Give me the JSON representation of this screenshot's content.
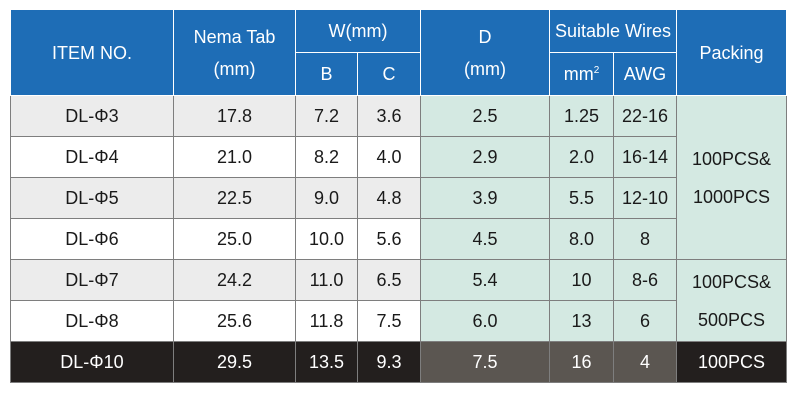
{
  "table": {
    "headers": {
      "item": "ITEM NO.",
      "nema_tab": [
        "Nema Tab",
        "(mm)"
      ],
      "w": "W(mm)",
      "b": "B",
      "c": "C",
      "d": [
        "D",
        "(mm)"
      ],
      "suitable_wires": "Suitable Wires",
      "mm2": "mm",
      "mm2_sup": "2",
      "awg": "AWG",
      "packing": "Packing"
    },
    "rows": [
      {
        "item": "DL-Φ3",
        "nema": "17.8",
        "b": "7.2",
        "c": "3.6",
        "d": "2.5",
        "mm2": "1.25",
        "awg": "22-16"
      },
      {
        "item": "DL-Φ4",
        "nema": "21.0",
        "b": "8.2",
        "c": "4.0",
        "d": "2.9",
        "mm2": "2.0",
        "awg": "16-14"
      },
      {
        "item": "DL-Φ5",
        "nema": "22.5",
        "b": "9.0",
        "c": "4.8",
        "d": "3.9",
        "mm2": "5.5",
        "awg": "12-10"
      },
      {
        "item": "DL-Φ6",
        "nema": "25.0",
        "b": "10.0",
        "c": "5.6",
        "d": "4.5",
        "mm2": "8.0",
        "awg": "8"
      },
      {
        "item": "DL-Φ7",
        "nema": "24.2",
        "b": "11.0",
        "c": "6.5",
        "d": "5.4",
        "mm2": "10",
        "awg": "8-6"
      },
      {
        "item": "DL-Φ8",
        "nema": "25.6",
        "b": "11.8",
        "c": "7.5",
        "d": "6.0",
        "mm2": "13",
        "awg": "6"
      },
      {
        "item": "DL-Φ10",
        "nema": "29.5",
        "b": "13.5",
        "c": "9.3",
        "d": "7.5",
        "mm2": "16",
        "awg": "4"
      }
    ],
    "packing": {
      "group1": [
        "100PCS&",
        "1000PCS"
      ],
      "group2": [
        "100PCS&",
        "500PCS"
      ],
      "group3": "100PCS"
    }
  },
  "colors": {
    "header": "#1e6db6",
    "row_light": "#ececec",
    "green": "#d4e9e2",
    "last_row": "#231f1e",
    "last_row_d": "#5b5651"
  }
}
